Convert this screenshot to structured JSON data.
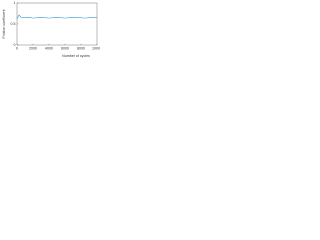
{
  "chart_data": {
    "type": "line",
    "x_label": "Number of cycles",
    "y_label": "Friction coefficient",
    "x": [
      0,
      250,
      500,
      1000,
      1500,
      2000,
      2500,
      3000,
      3500,
      4000,
      4500,
      5000,
      5500,
      6000,
      6500,
      7000,
      7500,
      8000,
      8500,
      9000,
      9500,
      10000
    ],
    "series": [
      {
        "name": "Friction coefficient",
        "color": "#3a9ad9",
        "values": [
          0.62,
          0.72,
          0.66,
          0.65,
          0.66,
          0.64,
          0.65,
          0.66,
          0.65,
          0.64,
          0.65,
          0.66,
          0.65,
          0.64,
          0.65,
          0.66,
          0.65,
          0.65,
          0.64,
          0.65,
          0.66,
          0.65
        ]
      }
    ],
    "xlim": [
      0,
      10000
    ],
    "xticks": [
      0,
      2000,
      4000,
      6000,
      8000,
      10000
    ],
    "ylim": [
      0,
      1
    ],
    "yticks": [
      0,
      0.5,
      1
    ],
    "grid": false
  }
}
